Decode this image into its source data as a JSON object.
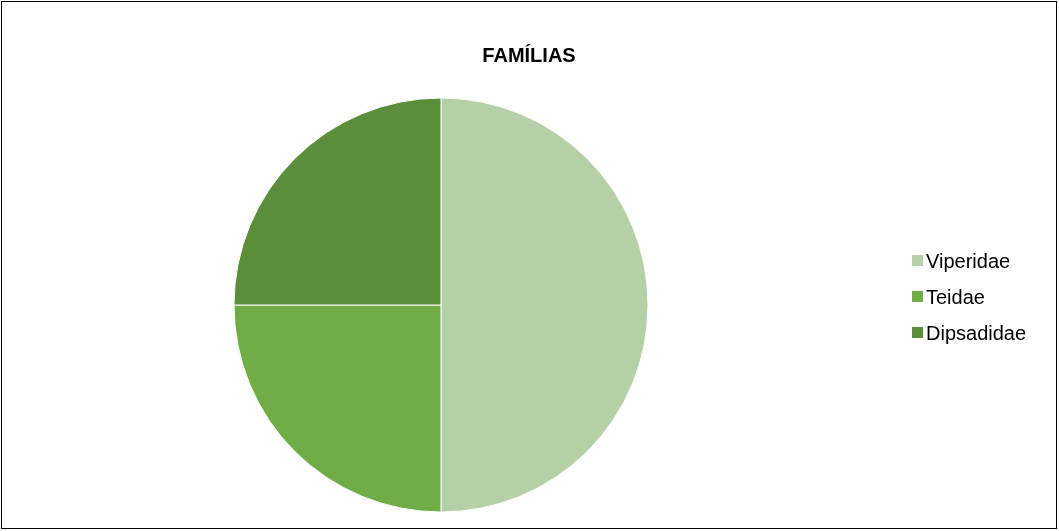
{
  "chart_data": {
    "type": "pie",
    "title": "FAMÍLIAS",
    "categories": [
      "Viperidae",
      "Teidae",
      "Dipsadidae"
    ],
    "values": [
      50,
      25,
      25
    ],
    "colors": [
      "#b5cfa7",
      "#70ad47",
      "#5a8e3a"
    ],
    "legend": "right"
  }
}
